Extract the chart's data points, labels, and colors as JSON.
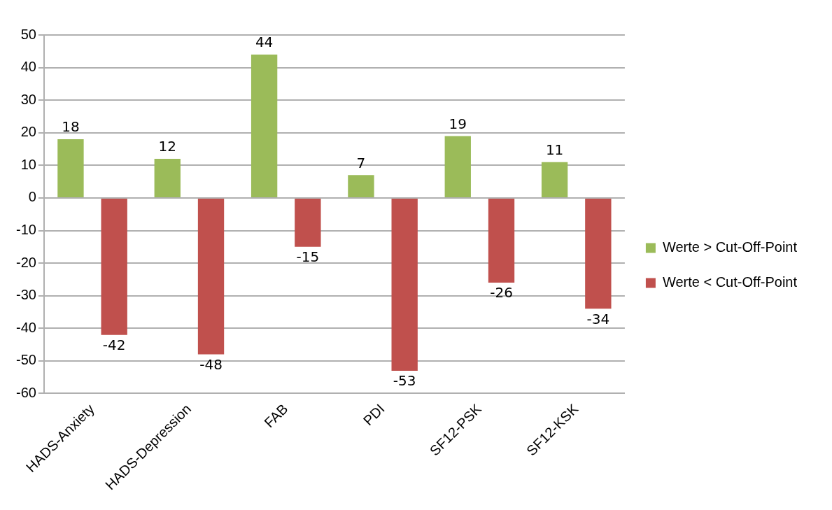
{
  "chart_data": {
    "type": "bar",
    "categories": [
      "HADS-Anxiety",
      "HADS-Depression",
      "FAB",
      "PDI",
      "SF12-PSK",
      "SF12-KSK"
    ],
    "series": [
      {
        "name": "Werte > Cut-Off-Point",
        "color": "#9bbb59",
        "values": [
          18,
          12,
          44,
          7,
          19,
          11
        ]
      },
      {
        "name": "Werte < Cut-Off-Point",
        "color": "#c0504d",
        "values": [
          -42,
          -48,
          -15,
          -53,
          -26,
          -34
        ]
      }
    ],
    "ylim": [
      -60,
      50
    ],
    "yticks": [
      -60,
      -50,
      -40,
      -30,
      -20,
      -10,
      0,
      10,
      20,
      30,
      40,
      50
    ],
    "grid": "y",
    "legend": "right",
    "data_labels": true
  }
}
